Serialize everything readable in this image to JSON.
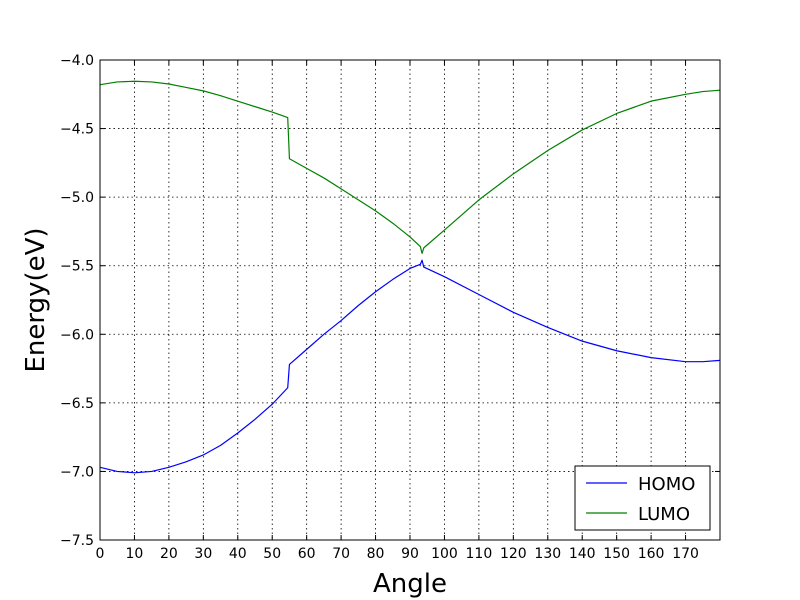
{
  "chart_data": {
    "type": "line",
    "xlabel": "Angle",
    "ylabel": "Energy(eV)",
    "xlim": [
      0,
      180
    ],
    "ylim": [
      -7.5,
      -4.0
    ],
    "x_ticks": [
      0,
      10,
      20,
      30,
      40,
      50,
      60,
      70,
      80,
      90,
      100,
      110,
      120,
      130,
      140,
      150,
      160,
      170
    ],
    "y_ticks": [
      -4.0,
      -4.5,
      -5.0,
      -5.5,
      -6.0,
      -6.5,
      -7.0,
      -7.5
    ],
    "y_tick_labels": [
      "−4.0",
      "−4.5",
      "−5.0",
      "−5.5",
      "−6.0",
      "−6.5",
      "−7.0",
      "−7.5"
    ],
    "grid": true,
    "legend_position": "lower-right",
    "series": [
      {
        "name": "HOMO",
        "color": "#0000ff",
        "x": [
          0,
          5,
          10,
          15,
          20,
          25,
          30,
          35,
          40,
          45,
          50,
          54.5,
          55,
          60,
          65,
          70,
          75,
          80,
          85,
          90,
          93,
          93.5,
          94,
          100,
          110,
          120,
          130,
          140,
          150,
          160,
          170,
          175,
          180
        ],
        "y": [
          -6.97,
          -7.0,
          -7.01,
          -7.0,
          -6.97,
          -6.93,
          -6.88,
          -6.81,
          -6.72,
          -6.62,
          -6.51,
          -6.39,
          -6.22,
          -6.11,
          -6.0,
          -5.9,
          -5.79,
          -5.69,
          -5.6,
          -5.52,
          -5.49,
          -5.46,
          -5.51,
          -5.58,
          -5.71,
          -5.84,
          -5.95,
          -6.05,
          -6.12,
          -6.17,
          -6.2,
          -6.2,
          -6.19
        ]
      },
      {
        "name": "LUMO",
        "color": "#008000",
        "x": [
          0,
          5,
          10,
          15,
          20,
          25,
          30,
          35,
          40,
          45,
          50,
          54.5,
          55,
          60,
          65,
          70,
          75,
          80,
          85,
          90,
          93,
          93.5,
          94,
          100,
          110,
          120,
          130,
          140,
          150,
          160,
          170,
          175,
          180
        ],
        "y": [
          -4.18,
          -4.16,
          -4.155,
          -4.16,
          -4.175,
          -4.2,
          -4.225,
          -4.26,
          -4.3,
          -4.34,
          -4.38,
          -4.42,
          -4.72,
          -4.79,
          -4.86,
          -4.94,
          -5.02,
          -5.1,
          -5.19,
          -5.29,
          -5.36,
          -5.41,
          -5.37,
          -5.24,
          -5.02,
          -4.83,
          -4.66,
          -4.51,
          -4.39,
          -4.3,
          -4.25,
          -4.23,
          -4.22
        ]
      }
    ]
  }
}
